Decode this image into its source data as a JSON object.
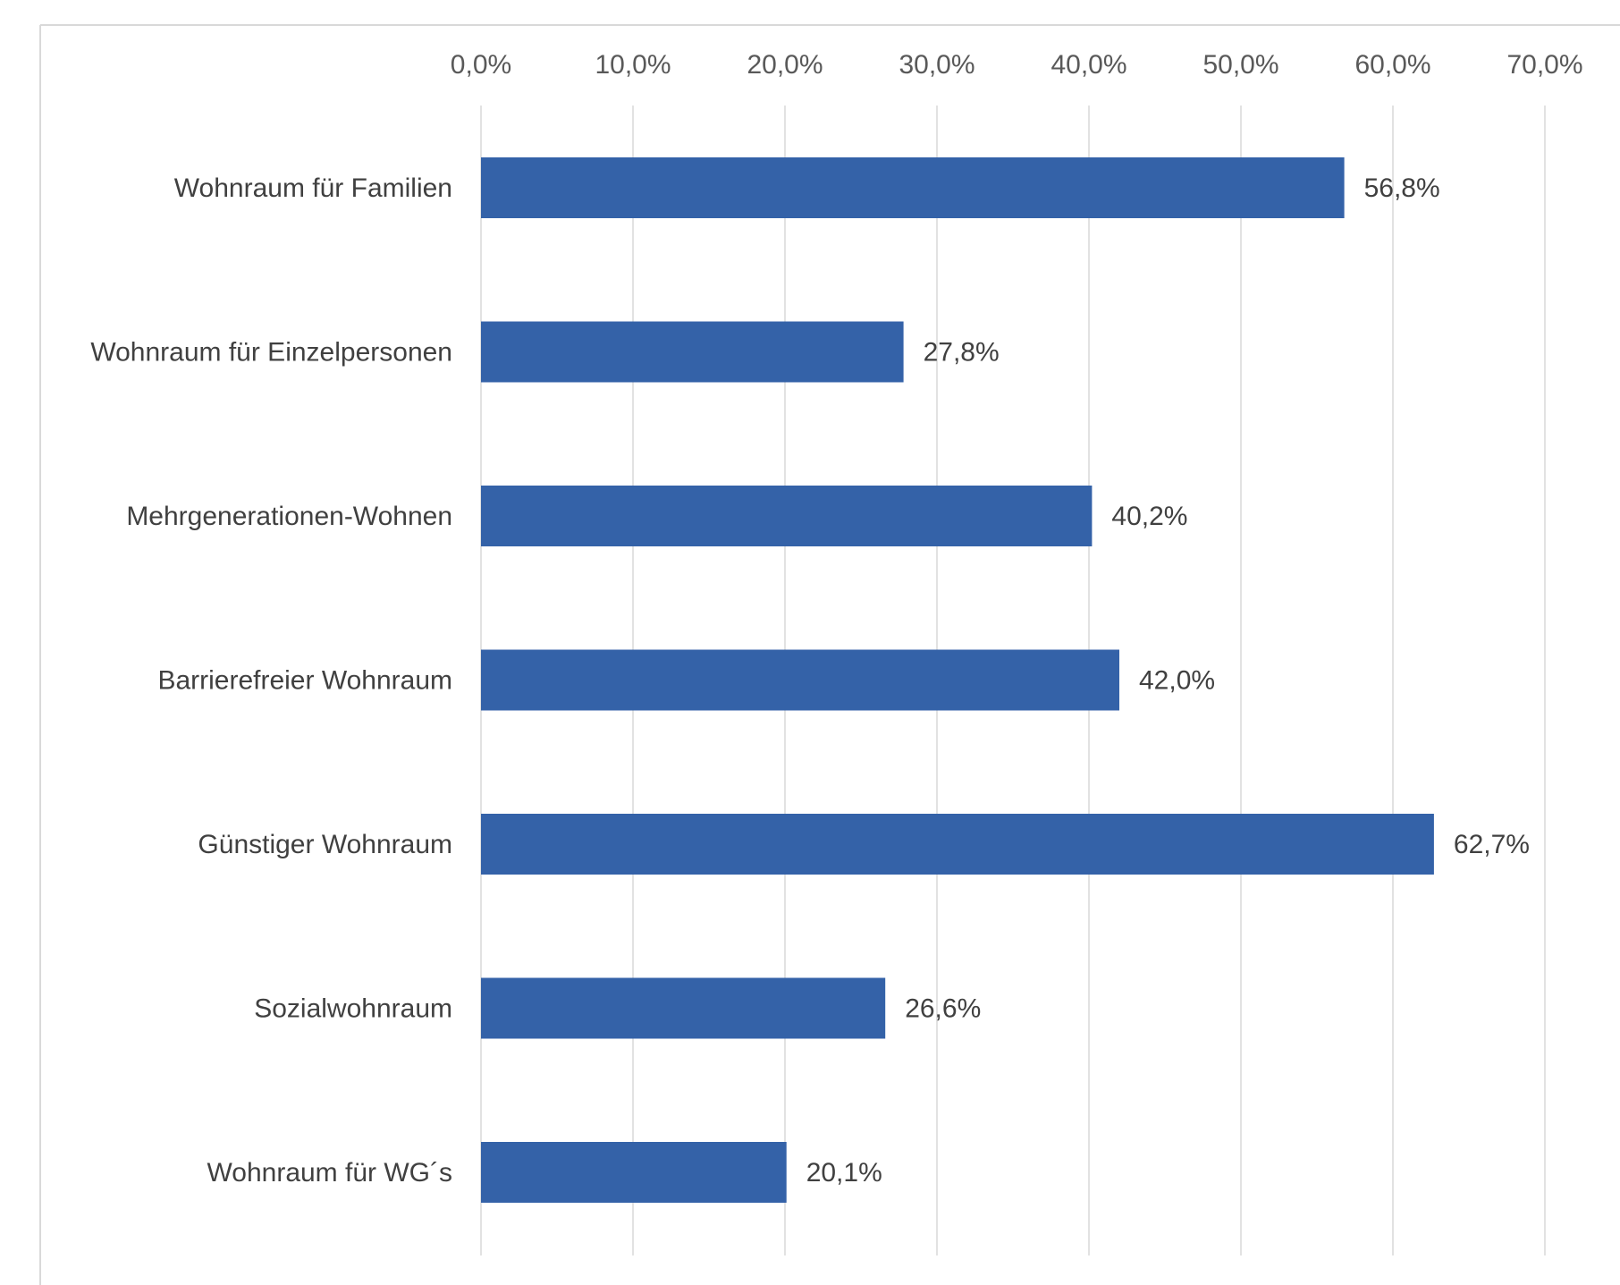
{
  "chart_data": {
    "type": "bar",
    "orientation": "horizontal",
    "categories": [
      "Wohnraum für Familien",
      "Wohnraum für Einzelpersonen",
      "Mehrgenerationen-Wohnen",
      "Barrierefreier Wohnraum",
      "Günstiger Wohnraum",
      "Sozialwohnraum",
      "Wohnraum für WG´s"
    ],
    "values": [
      56.8,
      27.8,
      40.2,
      42.0,
      62.7,
      26.6,
      20.1
    ],
    "value_labels": [
      "56,8%",
      "27,8%",
      "40,2%",
      "42,0%",
      "62,7%",
      "26,6%",
      "20,1%"
    ],
    "x_ticks": [
      0,
      10,
      20,
      30,
      40,
      50,
      60,
      70
    ],
    "x_tick_labels": [
      "0,0%",
      "10,0%",
      "20,0%",
      "30,0%",
      "40,0%",
      "50,0%",
      "60,0%",
      "70,0%"
    ],
    "xlim": [
      0,
      70
    ],
    "x_axis_position": "top",
    "grid": true,
    "title": "",
    "xlabel": "",
    "ylabel": "",
    "colors": {
      "bar": "#3462A8",
      "grid": "#D9D9D9",
      "frame": "#D9D9D9"
    }
  }
}
